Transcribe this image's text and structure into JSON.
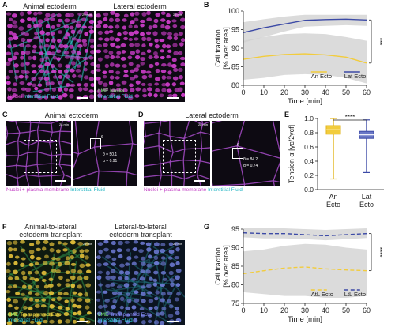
{
  "panels": {
    "A": {
      "label": "A",
      "title_left": "Animal ectoderm",
      "title_right": "Lateral ectoderm",
      "time": "29 min",
      "left_caption_1": "Nuclei",
      "left_caption_2": "Interstitial Fluid",
      "right_caption_1": "LME Nuclei",
      "right_caption_2": "Interstitial Fluid"
    },
    "B": {
      "label": "B"
    },
    "C": {
      "label": "C",
      "title": "Animal ectoderm",
      "time": "28 min",
      "theta": "θ = 50.1",
      "alpha": "α = 0.91",
      "caption_1": "Nuclei + plasma membrane",
      "caption_2": "Interstitial Fluid",
      "angle_mark": "θ"
    },
    "D": {
      "label": "D",
      "title": "Lateral ectoderm",
      "time": "28 min",
      "theta": "θ = 84.2",
      "alpha": "α = 0.74",
      "caption_1": "Nuclei + plasma membrane",
      "caption_2": "Interstitial Fluid",
      "angle_mark": "θ"
    },
    "E": {
      "label": "E"
    },
    "F": {
      "label": "F",
      "title_left_1": "Animal-to-lateral",
      "title_left_2": "ectoderm transplant",
      "title_right_1": "Lateral-to-lateral",
      "title_right_2": "ectoderm transplant",
      "time": "29 min",
      "left_caption_1": "LME",
      "left_caption_2": "Transplanted Ecto",
      "left_caption_3": "Interstitial Fluid",
      "right_caption_1": "LME",
      "right_caption_2": "Transplanted Ecto",
      "right_caption_3": "Interstitial Fluid"
    },
    "G": {
      "label": "G"
    }
  },
  "colors": {
    "animal": "#f2cc3c",
    "lateral": "#3c4aa6",
    "band": "#cfcfcf",
    "nuclei": "#d43fd0",
    "fluid": "#2fc9c9"
  },
  "chart_data": [
    {
      "panel": "B",
      "type": "line",
      "xlabel": "Time [min]",
      "ylabel": "Cell fraction [% over area]",
      "xlim": [
        0,
        60
      ],
      "ylim": [
        80,
        100
      ],
      "xticks": [
        0,
        10,
        20,
        30,
        40,
        50,
        60
      ],
      "yticks": [
        80,
        85,
        90,
        95,
        100
      ],
      "significance": "***",
      "series": [
        {
          "name": "An Ecto",
          "x": [
            0,
            10,
            20,
            30,
            40,
            50,
            60
          ],
          "y": [
            87.0,
            87.8,
            88.3,
            88.5,
            88.2,
            87.6,
            86.0
          ],
          "band_lo": [
            81.5,
            82.0,
            82.8,
            83.0,
            82.8,
            82.0,
            80.5
          ],
          "band_hi": [
            92.0,
            93.0,
            93.8,
            94.0,
            93.8,
            93.0,
            92.0
          ]
        },
        {
          "name": "Lat Ecto",
          "x": [
            0,
            10,
            20,
            30,
            40,
            50,
            60
          ],
          "y": [
            94.2,
            95.5,
            96.5,
            97.5,
            97.7,
            97.8,
            97.6
          ],
          "band_lo": [
            91.5,
            93.0,
            94.5,
            95.8,
            96.0,
            96.2,
            96.0
          ],
          "band_hi": [
            97.0,
            97.8,
            98.5,
            99.0,
            99.0,
            99.0,
            99.0
          ]
        }
      ]
    },
    {
      "panel": "E",
      "type": "box",
      "ylabel": "Tension α [γc/2γcf]",
      "ylim": [
        0.0,
        1.0
      ],
      "yticks": [
        "0.0",
        "0.2",
        "0.4",
        "0.6",
        "0.8",
        "1.0"
      ],
      "significance": "****",
      "boxes": [
        {
          "name": "An Ecto",
          "min": 0.15,
          "q1": 0.78,
          "median": 0.84,
          "q3": 0.9,
          "max": 1.0
        },
        {
          "name": "Lat Ecto",
          "min": 0.24,
          "q1": 0.72,
          "median": 0.77,
          "q3": 0.82,
          "max": 0.98
        }
      ]
    },
    {
      "panel": "G",
      "type": "line",
      "xlabel": "Time [min]",
      "ylabel": "Cell fraction [% over area]",
      "xlim": [
        0,
        60
      ],
      "ylim": [
        75,
        95
      ],
      "xticks": [
        0,
        10,
        20,
        30,
        40,
        50,
        60
      ],
      "yticks": [
        75,
        80,
        85,
        90,
        95
      ],
      "significance": "****",
      "series": [
        {
          "name": "AtL Ecto",
          "x": [
            0,
            10,
            20,
            30,
            40,
            50,
            60
          ],
          "y": [
            83.0,
            83.8,
            84.5,
            84.8,
            84.3,
            84.0,
            83.8
          ],
          "band_lo": [
            78.0,
            77.5,
            77.0,
            77.0,
            76.5,
            76.5,
            77.0
          ],
          "band_hi": [
            89.0,
            89.5,
            90.5,
            91.0,
            90.8,
            90.0,
            89.5
          ]
        },
        {
          "name": "LtL Ecto",
          "x": [
            0,
            10,
            20,
            30,
            40,
            50,
            60
          ],
          "y": [
            94.0,
            93.8,
            93.8,
            93.5,
            93.2,
            93.5,
            93.8
          ],
          "band_lo": [
            92.8,
            92.5,
            92.5,
            92.3,
            92.0,
            92.3,
            92.6
          ],
          "band_hi": [
            95.3,
            95.3,
            95.2,
            95.0,
            94.8,
            95.0,
            95.2
          ]
        }
      ]
    }
  ]
}
